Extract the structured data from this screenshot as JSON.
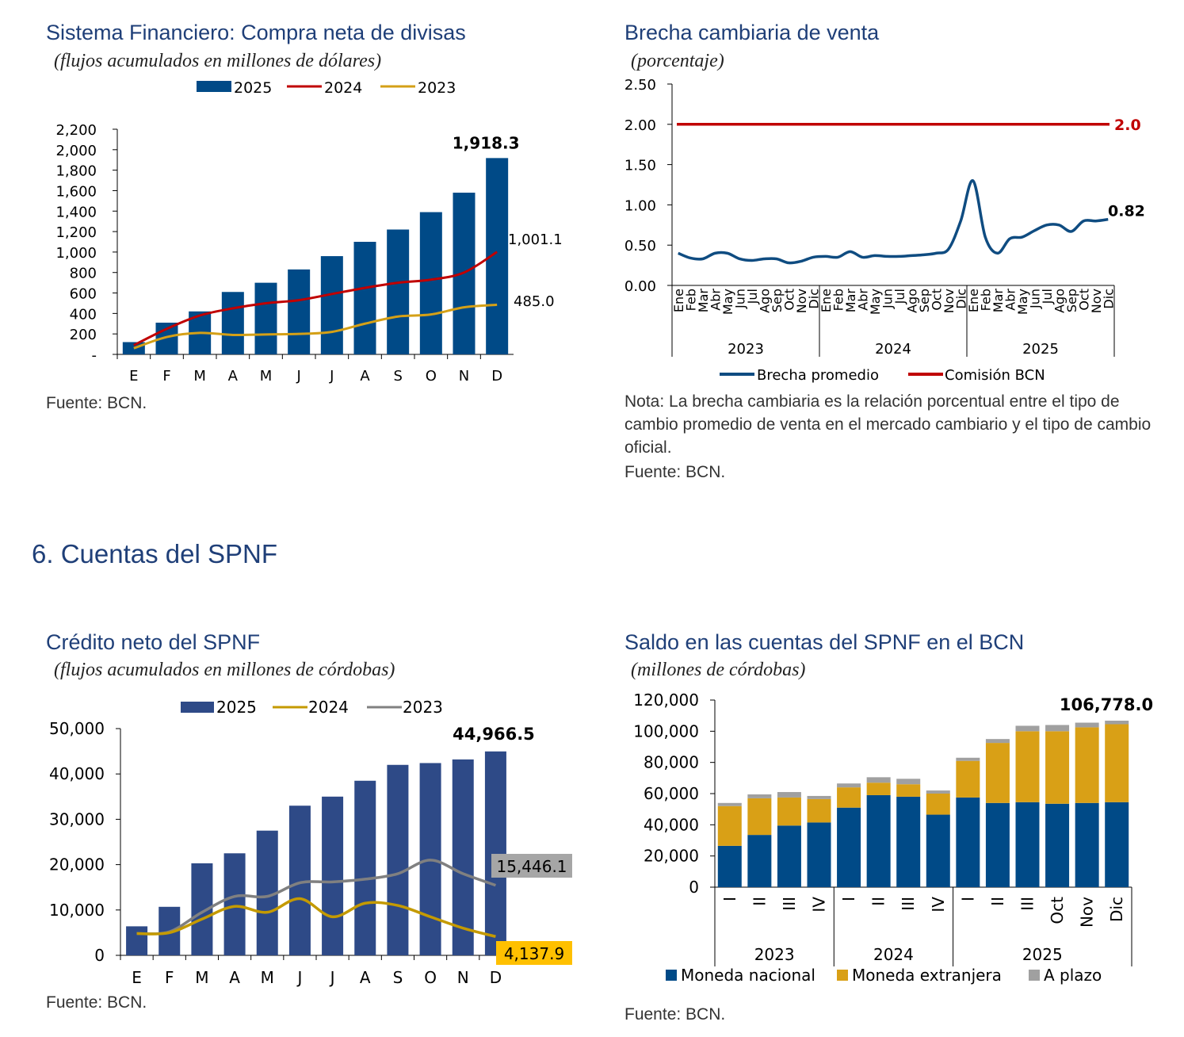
{
  "section_title": "6.  Cuentas del SPNF",
  "charts": {
    "compra": {
      "title": "Sistema Financiero: Compra neta de divisas",
      "subtitle": "(flujos acumulados en millones de dólares)",
      "source": "Fuente: BCN."
    },
    "brecha": {
      "title": "Brecha cambiaria de venta",
      "subtitle": "(porcentaje)",
      "note": "Nota: La brecha cambiaria es la relación porcentual entre el tipo de cambio promedio de venta en el mercado cambiario y el tipo de cambio oficial.",
      "source": "Fuente: BCN."
    },
    "credito": {
      "title": "Crédito neto del SPNF",
      "subtitle": "(flujos acumulados en millones de córdobas)",
      "source": "Fuente: BCN."
    },
    "saldo": {
      "title": "Saldo en las cuentas del SPNF en el BCN",
      "subtitle": "(millones de córdobas)",
      "source": "Fuente: BCN."
    }
  },
  "chart_data": [
    {
      "id": "compra",
      "type": "bar+line",
      "title": "Sistema Financiero: Compra neta de divisas",
      "categories": [
        "E",
        "F",
        "M",
        "A",
        "M",
        "J",
        "J",
        "A",
        "S",
        "O",
        "N",
        "D"
      ],
      "ylim": [
        0,
        2200
      ],
      "yticks": [
        0,
        200,
        400,
        600,
        800,
        1000,
        1200,
        1400,
        1600,
        1800,
        2000,
        2200
      ],
      "ytick_labels": [
        "-",
        "200",
        "400",
        "600",
        "800",
        "1,000",
        "1,200",
        "1,400",
        "1,600",
        "1,800",
        "2,000",
        "2,200"
      ],
      "series": [
        {
          "name": "2025",
          "kind": "bar",
          "color": "#004a87",
          "values": [
            120,
            310,
            420,
            610,
            700,
            830,
            960,
            1100,
            1220,
            1390,
            1580,
            1918.3
          ]
        },
        {
          "name": "2024",
          "kind": "line",
          "color": "#c00000",
          "values": [
            90,
            250,
            380,
            450,
            500,
            530,
            590,
            650,
            700,
            730,
            800,
            1001.1
          ]
        },
        {
          "name": "2023",
          "kind": "line",
          "color": "#d4a017",
          "values": [
            60,
            170,
            210,
            190,
            195,
            200,
            220,
            300,
            370,
            390,
            460,
            485.0
          ]
        }
      ],
      "labels": {
        "bar_end": "1,918.3",
        "line2024_end": "1,001.1",
        "line2023_end": "485.0"
      }
    },
    {
      "id": "brecha",
      "type": "line",
      "title": "Brecha cambiaria de venta",
      "ylim": [
        0,
        2.5
      ],
      "yticks": [
        0,
        0.5,
        1,
        1.5,
        2,
        2.5
      ],
      "ytick_labels": [
        "0.00",
        "0.50",
        "1.00",
        "1.50",
        "2.00",
        "2.50"
      ],
      "months": [
        "Ene",
        "Feb",
        "Mar",
        "Abr",
        "May",
        "Jun",
        "Jul",
        "Ago",
        "Sep",
        "Oct",
        "Nov",
        "Dic"
      ],
      "years": [
        "2023",
        "2024",
        "2025"
      ],
      "series": [
        {
          "name": "Brecha promedio",
          "color": "#0f4c81",
          "values": [
            0.4,
            0.34,
            0.33,
            0.4,
            0.4,
            0.33,
            0.31,
            0.33,
            0.33,
            0.28,
            0.3,
            0.35,
            0.36,
            0.35,
            0.42,
            0.35,
            0.37,
            0.36,
            0.36,
            0.37,
            0.38,
            0.4,
            0.45,
            0.8,
            1.3,
            0.6,
            0.4,
            0.58,
            0.6,
            0.68,
            0.75,
            0.75,
            0.67,
            0.8,
            0.8,
            0.82
          ]
        },
        {
          "name": "Comisión BCN",
          "color": "#c00000",
          "values": [
            2.0
          ]
        }
      ],
      "labels": {
        "comision": "2.0",
        "last": "0.82"
      }
    },
    {
      "id": "credito",
      "type": "bar+line",
      "title": "Crédito neto del SPNF",
      "categories": [
        "E",
        "F",
        "M",
        "A",
        "M",
        "J",
        "J",
        "A",
        "S",
        "O",
        "N",
        "D"
      ],
      "ylim": [
        0,
        50000
      ],
      "yticks": [
        0,
        10000,
        20000,
        30000,
        40000,
        50000
      ],
      "ytick_labels": [
        "0",
        "10,000",
        "20,000",
        "30,000",
        "40,000",
        "50,000"
      ],
      "series": [
        {
          "name": "2025",
          "kind": "bar",
          "color": "#2e4a87",
          "values": [
            6400,
            10700,
            20300,
            22500,
            27500,
            33000,
            35000,
            38500,
            42000,
            42400,
            43200,
            44966.5
          ]
        },
        {
          "name": "2024",
          "kind": "line",
          "color": "#c49a00",
          "values": [
            4800,
            5000,
            8000,
            10800,
            9500,
            12500,
            8500,
            11500,
            11000,
            8500,
            6000,
            4137.9
          ]
        },
        {
          "name": "2023",
          "kind": "line",
          "color": "#808080",
          "values": [
            4800,
            5200,
            9500,
            13000,
            13000,
            16000,
            16200,
            16800,
            18000,
            21000,
            18000,
            15446.1
          ]
        }
      ],
      "labels": {
        "bar_end": "44,966.5",
        "line2023_end": "15,446.1",
        "line2024_end": "4,137.9"
      }
    },
    {
      "id": "saldo",
      "type": "stacked-bar",
      "title": "Saldo en las cuentas del SPNF en el BCN",
      "ylim": [
        0,
        120000
      ],
      "yticks": [
        0,
        20000,
        40000,
        60000,
        80000,
        100000,
        120000
      ],
      "ytick_labels": [
        "0",
        "20,000",
        "40,000",
        "60,000",
        "80,000",
        "100,000",
        "120,000"
      ],
      "categories": [
        "I",
        "II",
        "III",
        "IV",
        "I",
        "II",
        "III",
        "IV",
        "I",
        "II",
        "III",
        "Oct",
        "Nov",
        "Dic"
      ],
      "years": [
        "2023",
        "2024",
        "2025"
      ],
      "series": [
        {
          "name": "Moneda nacional",
          "color": "#004a87",
          "values": [
            26500,
            33500,
            39500,
            41500,
            51000,
            59000,
            58000,
            46500,
            57500,
            54000,
            54500,
            53500,
            54000,
            54500
          ]
        },
        {
          "name": "Moneda extranjera",
          "color": "#d9a016",
          "values": [
            25500,
            23500,
            18000,
            15000,
            13000,
            8000,
            8000,
            13500,
            23500,
            38500,
            45500,
            46500,
            48500,
            50000
          ]
        },
        {
          "name": "A plazo",
          "color": "#a0a0a0",
          "values": [
            2000,
            2500,
            3500,
            2000,
            2500,
            3500,
            3500,
            2000,
            2000,
            2500,
            3500,
            4000,
            3000,
            2278
          ]
        }
      ],
      "labels": {
        "total_end": "106,778.0"
      }
    }
  ]
}
